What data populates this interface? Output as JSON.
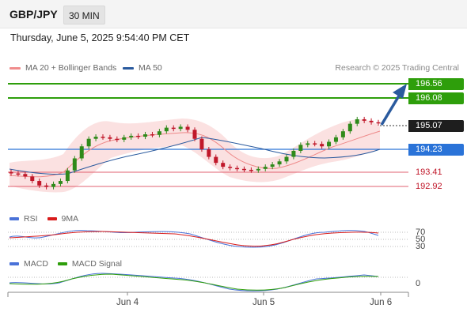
{
  "header": {
    "symbol": "GBP/JPY",
    "timeframe": "30 MIN",
    "datetime": "Thursday, June 5, 2025 9:54:40 PM CET"
  },
  "legend": {
    "items": [
      {
        "label": "MA 20 + Bollinger Bands",
        "color": "#f08c8c"
      },
      {
        "label": "MA 50",
        "color": "#2a5a9e"
      }
    ],
    "copyright": "Research © 2025 Trading Central"
  },
  "price_levels": {
    "target_2": "196.56",
    "target_1": "196.08",
    "last": "195.07",
    "pivot": "194.23",
    "support_1": "193.41",
    "support_2": "192.92"
  },
  "rsi_panel": {
    "legend": [
      {
        "label": "RSI",
        "color": "#4a72d8"
      },
      {
        "label": "9MA",
        "color": "#d81b1b"
      }
    ],
    "levels": [
      "70",
      "50",
      "30"
    ]
  },
  "macd_panel": {
    "legend": [
      {
        "label": "MACD",
        "color": "#4a72d8"
      },
      {
        "label": "MACD Signal",
        "color": "#2e9e0b"
      }
    ],
    "zero_label": "0"
  },
  "x_axis": {
    "dates": [
      "Jun 4",
      "Jun 5",
      "Jun 6"
    ]
  },
  "colors": {
    "up": "#2f8a1a",
    "down": "#c0182a",
    "target": "#2e9e0b",
    "pivot": "#2a73d8",
    "support": "#d3303f",
    "arrow": "#2a5a9e"
  },
  "chart_data": {
    "type": "candlestick",
    "ylim": [
      192.6,
      196.8
    ],
    "horizontal_levels": [
      196.56,
      196.08,
      194.23,
      193.41,
      192.92
    ],
    "last_price": 195.07,
    "close_series": [
      193.4,
      193.38,
      193.3,
      193.15,
      193.0,
      192.95,
      193.05,
      193.15,
      193.5,
      193.9,
      194.3,
      194.55,
      194.62,
      194.6,
      194.55,
      194.52,
      194.6,
      194.65,
      194.62,
      194.7,
      194.68,
      194.8,
      194.92,
      194.88,
      194.95,
      194.85,
      194.55,
      194.2,
      193.95,
      193.75,
      193.62,
      193.58,
      193.55,
      193.52,
      193.5,
      193.55,
      193.62,
      193.7,
      193.8,
      193.95,
      194.15,
      194.35,
      194.4,
      194.38,
      194.3,
      194.45,
      194.6,
      194.8,
      195.05,
      195.2,
      195.15,
      195.1,
      195.07
    ]
  }
}
